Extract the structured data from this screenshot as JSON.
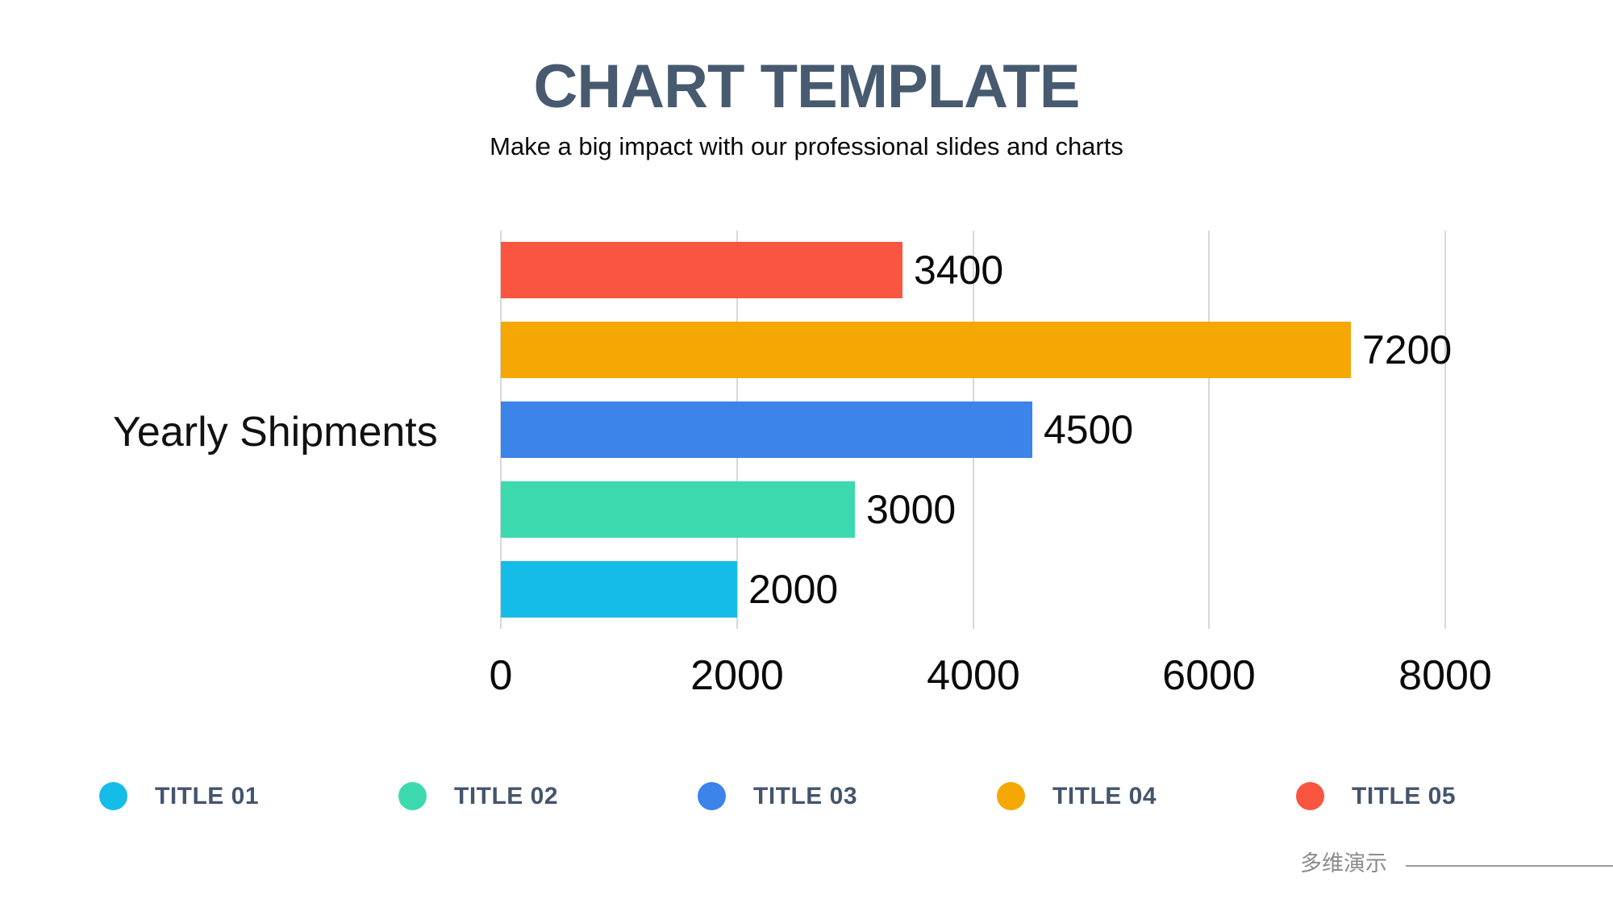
{
  "slide": {
    "title": "CHART TEMPLATE",
    "subtitle": "Make a big impact with our professional slides and charts",
    "watermark": "多维演示"
  },
  "chart_data": {
    "type": "bar",
    "orientation": "horizontal",
    "ylabel": "Yearly Shipments",
    "xlim": [
      0,
      8000
    ],
    "x_ticks": [
      0,
      2000,
      4000,
      6000,
      8000
    ],
    "grid": true,
    "data_labels": true,
    "legend_position": "bottom",
    "series": [
      {
        "name": "TITLE 01",
        "value": 2000,
        "color": "#15BCE8"
      },
      {
        "name": "TITLE 02",
        "value": 3000,
        "color": "#3DD9AE"
      },
      {
        "name": "TITLE 03",
        "value": 4500,
        "color": "#3C83EA"
      },
      {
        "name": "TITLE 04",
        "value": 7200,
        "color": "#F5A704"
      },
      {
        "name": "TITLE 05",
        "value": 3400,
        "color": "#FA5541"
      }
    ],
    "bar_order_top_to_bottom": [
      "TITLE 05",
      "TITLE 04",
      "TITLE 03",
      "TITLE 02",
      "TITLE 01"
    ]
  },
  "theme": {
    "title_color": "#475A70",
    "legend_label_color": "#44556B",
    "grid_color": "#D8D8D8",
    "watermark_color": "#8C8C8C"
  }
}
